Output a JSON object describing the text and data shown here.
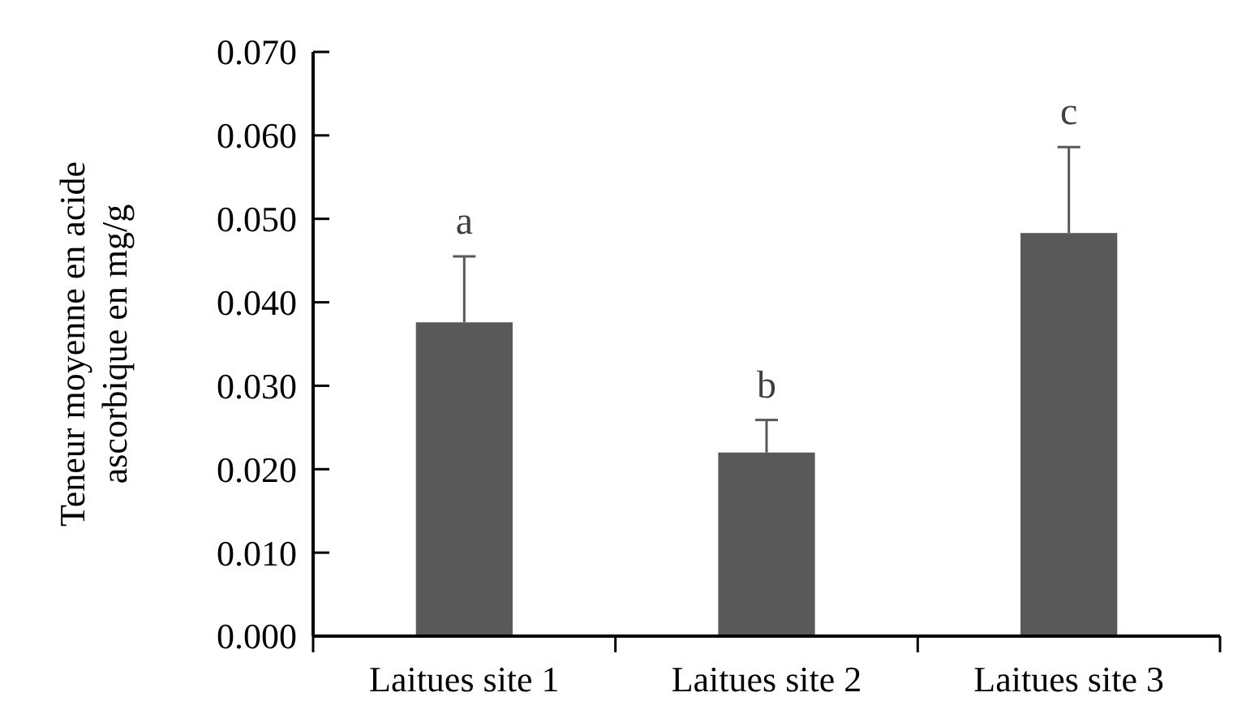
{
  "chart_data": {
    "type": "bar",
    "ylabel": "Teneur moyenne en acide\nascorbique en mg/g",
    "categories": [
      "Laitues site 1",
      "Laitues site 2",
      "Laitues site 3"
    ],
    "values": [
      0.0376,
      0.022,
      0.0483
    ],
    "errors": [
      [
        0.0376,
        0.0455
      ],
      [
        0.022,
        0.0259
      ],
      [
        0.0483,
        0.0586
      ]
    ],
    "color": "#595959",
    "ylim": [
      0,
      0.07
    ],
    "yticks": [
      {
        "value": 0,
        "label": "0.000"
      },
      {
        "value": 0.01,
        "label": "0.010"
      },
      {
        "value": 0.02,
        "label": "0.020"
      },
      {
        "value": 0.03,
        "label": "0.030"
      },
      {
        "value": 0.04,
        "label": "0.040"
      },
      {
        "value": 0.05,
        "label": "0.050"
      },
      {
        "value": 0.06,
        "label": "0.060"
      },
      {
        "value": 0.07,
        "label": "0.070"
      }
    ],
    "annotations": [
      "a",
      "b",
      "c"
    ],
    "grid": false
  }
}
